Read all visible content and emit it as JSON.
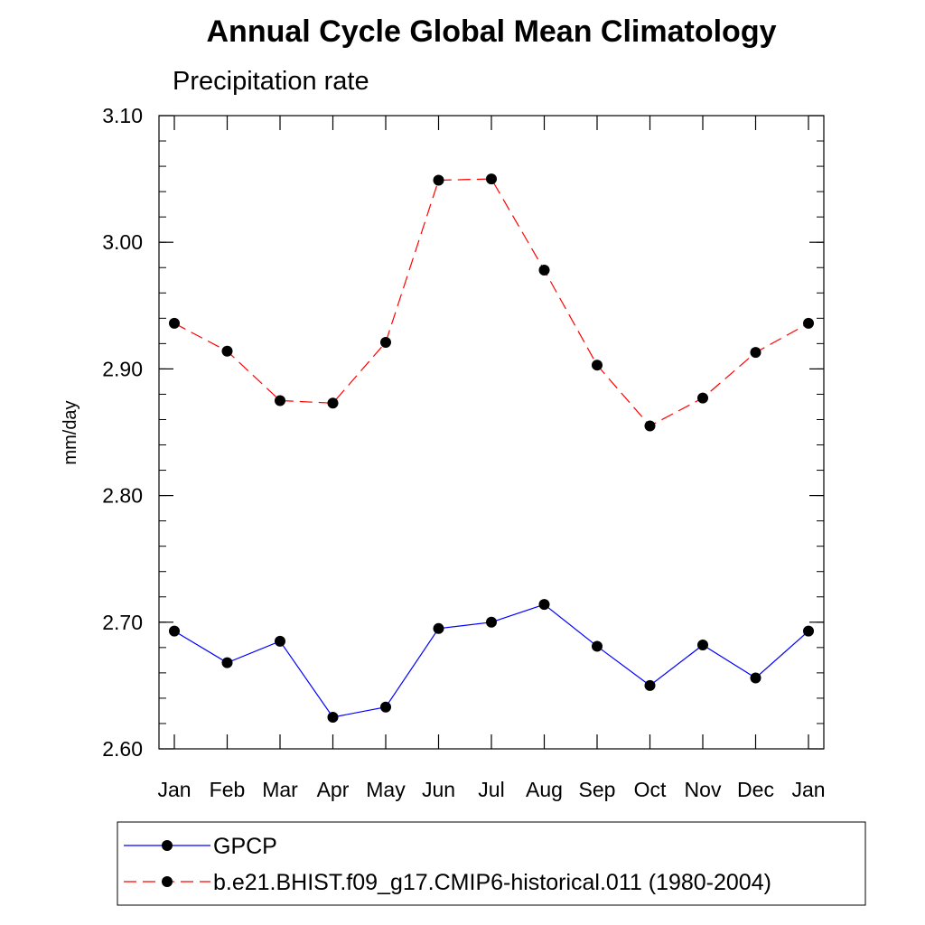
{
  "chart_data": {
    "type": "line",
    "title": "Annual Cycle Global Mean Climatology",
    "subtitle": "Precipitation rate",
    "xlabel": "",
    "ylabel": "mm/day",
    "categories": [
      "Jan",
      "Feb",
      "Mar",
      "Apr",
      "May",
      "Jun",
      "Jul",
      "Aug",
      "Sep",
      "Oct",
      "Nov",
      "Dec",
      "Jan"
    ],
    "ylim": [
      2.6,
      3.1
    ],
    "yticks": [
      2.6,
      2.7,
      2.8,
      2.9,
      3.0,
      3.1
    ],
    "ytick_labels": [
      "2.60",
      "2.70",
      "2.80",
      "2.90",
      "3.00",
      "3.10"
    ],
    "y_minor_step": 0.02,
    "series": [
      {
        "name": "GPCP",
        "color": "#0000ff",
        "dash": "solid",
        "values": [
          2.693,
          2.668,
          2.685,
          2.625,
          2.633,
          2.695,
          2.7,
          2.714,
          2.681,
          2.65,
          2.682,
          2.656,
          2.693
        ]
      },
      {
        "name": "b.e21.BHIST.f09_g17.CMIP6-historical.011 (1980-2004)",
        "color": "#ff0000",
        "dash": "dashed",
        "values": [
          2.936,
          2.914,
          2.875,
          2.873,
          2.921,
          3.049,
          3.05,
          2.978,
          2.903,
          2.855,
          2.877,
          2.913,
          2.936
        ]
      }
    ],
    "legend": {
      "position": "bottom"
    }
  }
}
